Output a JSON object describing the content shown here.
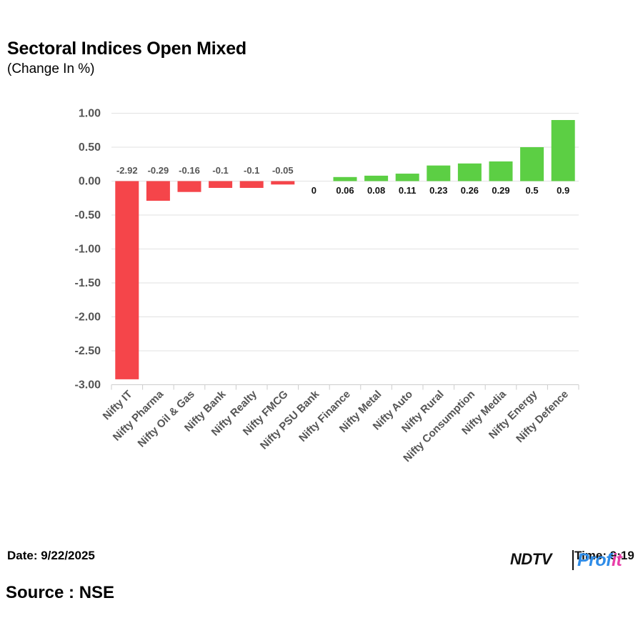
{
  "header": {
    "title": "Sectoral Indices Open Mixed",
    "subtitle": "(Change In %)"
  },
  "footer": {
    "date": "Date: 9/22/2025",
    "source": "Source : NSE",
    "logo_ndtv": "NDTV",
    "logo_profit_a": "Prof",
    "logo_profit_b": "it",
    "logo_overlap_text": "Time: 9:19"
  },
  "colors": {
    "negative": "#f5454a",
    "positive": "#5ccf44",
    "grid": "#e2e2e2",
    "axis_text": "#555555"
  },
  "chart_data": {
    "type": "bar",
    "title": "Sectoral Indices Open Mixed",
    "subtitle": "(Change In %)",
    "xlabel": "",
    "ylabel": "",
    "ylim": [
      -3.0,
      1.0
    ],
    "yticks": [
      1.0,
      0.5,
      0.0,
      -0.5,
      -1.0,
      -1.5,
      -2.0,
      -2.5,
      -3.0
    ],
    "ytick_labels": [
      "1.00",
      "0.50",
      "0.00",
      "-0.50",
      "-1.00",
      "-1.50",
      "-2.00",
      "-2.50",
      "-3.00"
    ],
    "grid": true,
    "legend": "none",
    "categories": [
      "Nifty IT",
      "Nifty Pharma",
      "Nifty Oil & Gas",
      "Nifty Bank",
      "Nifty Realty",
      "Nifty FMCG",
      "Nifty PSU Bank",
      "Nifty Finance",
      "Nifty Metal",
      "Nifty Auto",
      "Nifty Rural",
      "Nifty Consumption",
      "Nifty Media",
      "Nifty Energy",
      "Nifty Defence"
    ],
    "values": [
      -2.92,
      -0.29,
      -0.16,
      -0.1,
      -0.1,
      -0.05,
      0,
      0.06,
      0.08,
      0.11,
      0.23,
      0.26,
      0.29,
      0.5,
      0.9
    ],
    "data_labels": [
      "-2.92",
      "-0.29",
      "-0.16",
      "-0.1",
      "-0.1",
      "-0.05",
      "0",
      "0.06",
      "0.08",
      "0.11",
      "0.23",
      "0.26",
      "0.29",
      "0.5",
      "0.9"
    ]
  }
}
